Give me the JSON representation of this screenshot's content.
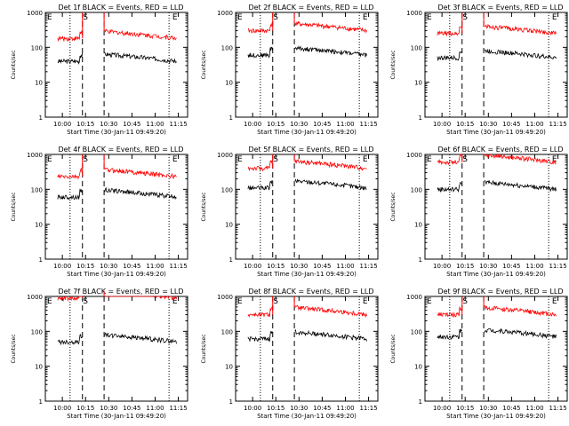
{
  "colors": {
    "events": "#000000",
    "lld": "#ff0000",
    "axis": "#000000",
    "background": "#ffffff"
  },
  "chart_data": [
    {
      "type": "line",
      "title": "Det 1f BLACK = Events, RED = LLD",
      "xlabel": "Start Time (30-Jan-11 09:49:20)",
      "ylabel": "Counts/sec",
      "yscale": "log",
      "ylim": [
        1,
        1000
      ],
      "x_ticks": [
        "10:00",
        "10:15",
        "10:30",
        "10:45",
        "11:00",
        "11:15"
      ],
      "y_ticks": [
        "1",
        "10",
        "100",
        "1000"
      ],
      "markers": {
        "S": "10:15",
        "E": "11:10"
      },
      "series": [
        {
          "name": "Events",
          "color": "#000000",
          "level": 40
        },
        {
          "name": "LLD",
          "color": "#ff0000",
          "level": 180
        }
      ]
    },
    {
      "type": "line",
      "title": "Det 2f BLACK = Events, RED = LLD",
      "xlabel": "Start Time (30-Jan-11 09:49:20)",
      "ylabel": "Counts/sec",
      "yscale": "log",
      "ylim": [
        1,
        1000
      ],
      "x_ticks": [
        "10:00",
        "10:15",
        "10:30",
        "10:45",
        "11:00",
        "11:15"
      ],
      "y_ticks": [
        "1",
        "10",
        "100",
        "1000"
      ],
      "markers": {
        "S": "10:15",
        "E": "11:10"
      },
      "series": [
        {
          "name": "Events",
          "color": "#000000",
          "level": 60
        },
        {
          "name": "LLD",
          "color": "#ff0000",
          "level": 300
        }
      ]
    },
    {
      "type": "line",
      "title": "Det 3f BLACK = Events, RED = LLD",
      "xlabel": "Start Time (30-Jan-11 09:49:20)",
      "ylabel": "Counts/sec",
      "yscale": "log",
      "ylim": [
        1,
        1000
      ],
      "x_ticks": [
        "10:00",
        "10:15",
        "10:30",
        "10:45",
        "11:00",
        "11:15"
      ],
      "y_ticks": [
        "1",
        "10",
        "100",
        "1000"
      ],
      "markers": {
        "S": "10:15",
        "E": "11:10"
      },
      "series": [
        {
          "name": "Events",
          "color": "#000000",
          "level": 50
        },
        {
          "name": "LLD",
          "color": "#ff0000",
          "level": 250
        }
      ]
    },
    {
      "type": "line",
      "title": "Det 4f BLACK = Events, RED = LLD",
      "xlabel": "Start Time (30-Jan-11 09:49:20)",
      "ylabel": "Counts/sec",
      "yscale": "log",
      "ylim": [
        1,
        1000
      ],
      "x_ticks": [
        "10:00",
        "10:15",
        "10:30",
        "10:45",
        "11:00",
        "11:15"
      ],
      "y_ticks": [
        "1",
        "10",
        "100",
        "1000"
      ],
      "markers": {
        "S": "10:15",
        "E": "11:10"
      },
      "series": [
        {
          "name": "Events",
          "color": "#000000",
          "level": 60
        },
        {
          "name": "LLD",
          "color": "#ff0000",
          "level": 230
        }
      ]
    },
    {
      "type": "line",
      "title": "Det 5f BLACK = Events, RED = LLD",
      "xlabel": "Start Time (30-Jan-11 09:49:20)",
      "ylabel": "Counts/sec",
      "yscale": "log",
      "ylim": [
        1,
        1000
      ],
      "x_ticks": [
        "10:00",
        "10:15",
        "10:30",
        "10:45",
        "11:00",
        "11:15"
      ],
      "y_ticks": [
        "1",
        "10",
        "100",
        "1000"
      ],
      "markers": {
        "S": "10:15",
        "E": "11:10"
      },
      "series": [
        {
          "name": "Events",
          "color": "#000000",
          "level": 110
        },
        {
          "name": "LLD",
          "color": "#ff0000",
          "level": 400
        }
      ]
    },
    {
      "type": "line",
      "title": "Det 6f BLACK = Events, RED = LLD",
      "xlabel": "Start Time (30-Jan-11 09:49:20)",
      "ylabel": "Counts/sec",
      "yscale": "log",
      "ylim": [
        1,
        1000
      ],
      "x_ticks": [
        "10:00",
        "10:15",
        "10:30",
        "10:45",
        "11:00",
        "11:15"
      ],
      "y_ticks": [
        "1",
        "10",
        "100",
        "1000"
      ],
      "markers": {
        "S": "10:15",
        "E": "11:10"
      },
      "series": [
        {
          "name": "Events",
          "color": "#000000",
          "level": 100
        },
        {
          "name": "LLD",
          "color": "#ff0000",
          "level": 600
        }
      ]
    },
    {
      "type": "line",
      "title": "Det 7f BLACK = Events, RED = LLD",
      "xlabel": "Start Time (30-Jan-11 09:49:20)",
      "ylabel": "Counts/sec",
      "yscale": "log",
      "ylim": [
        1,
        1000
      ],
      "x_ticks": [
        "10:00",
        "10:15",
        "10:30",
        "10:45",
        "11:00",
        "11:15"
      ],
      "y_ticks": [
        "1",
        "10",
        "100",
        "1000"
      ],
      "markers": {
        "S": "10:15",
        "E": "11:10"
      },
      "series": [
        {
          "name": "Events",
          "color": "#000000",
          "level": 50
        },
        {
          "name": "LLD",
          "color": "#ff0000",
          "level": 900
        }
      ]
    },
    {
      "type": "line",
      "title": "Det 8f BLACK = Events, RED = LLD",
      "xlabel": "Start Time (30-Jan-11 09:49:20)",
      "ylabel": "Counts/sec",
      "yscale": "log",
      "ylim": [
        1,
        1000
      ],
      "x_ticks": [
        "10:00",
        "10:15",
        "10:30",
        "10:45",
        "11:00",
        "11:15"
      ],
      "y_ticks": [
        "1",
        "10",
        "100",
        "1000"
      ],
      "markers": {
        "S": "10:15",
        "E": "11:10"
      },
      "series": [
        {
          "name": "Events",
          "color": "#000000",
          "level": 60
        },
        {
          "name": "LLD",
          "color": "#ff0000",
          "level": 300
        }
      ]
    },
    {
      "type": "line",
      "title": "Det 9f BLACK = Events, RED = LLD",
      "xlabel": "Start Time (30-Jan-11 09:49:20)",
      "ylabel": "Counts/sec",
      "yscale": "log",
      "ylim": [
        1,
        1000
      ],
      "x_ticks": [
        "10:00",
        "10:15",
        "10:30",
        "10:45",
        "11:00",
        "11:15"
      ],
      "y_ticks": [
        "1",
        "10",
        "100",
        "1000"
      ],
      "markers": {
        "S": "10:15",
        "E": "11:10"
      },
      "series": [
        {
          "name": "Events",
          "color": "#000000",
          "level": 70
        },
        {
          "name": "LLD",
          "color": "#ff0000",
          "level": 300
        }
      ]
    }
  ]
}
